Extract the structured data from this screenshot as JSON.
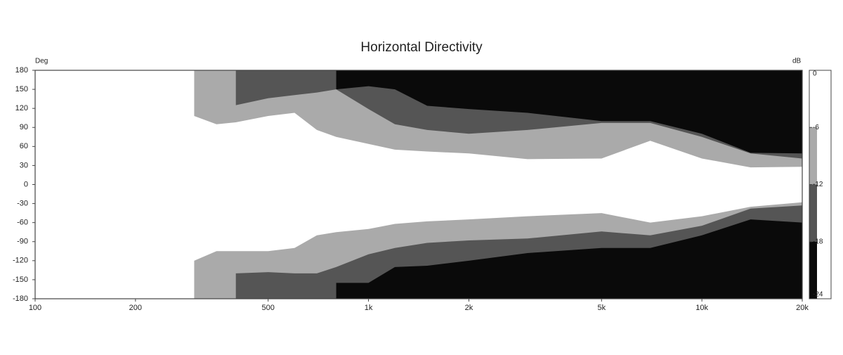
{
  "chart_data": {
    "type": "contour",
    "title": "Horizontal Directivity",
    "y_label": "Deg",
    "colorbar_label": "dB",
    "log_x": true,
    "xlim": [
      100,
      20000
    ],
    "xticks": [
      100,
      200,
      500,
      {
        "value": 1000,
        "label": "1k"
      },
      {
        "value": 2000,
        "label": "2k"
      },
      {
        "value": 5000,
        "label": "5k"
      },
      {
        "value": 10000,
        "label": "10k"
      },
      {
        "value": 20000,
        "label": "20k"
      }
    ],
    "ylim": [
      -180,
      180
    ],
    "yticks": [
      180,
      150,
      120,
      90,
      60,
      30,
      0,
      -30,
      -60,
      -90,
      -120,
      -150,
      -180
    ],
    "x": [
      300,
      350,
      400,
      500,
      600,
      700,
      800,
      1000,
      1200,
      1500,
      2000,
      3000,
      5000,
      7000,
      10000,
      14000,
      20000
    ],
    "series": [
      {
        "level": -6,
        "color": "#aaaaaa",
        "upper": [
          108,
          95,
          98,
          108,
          113,
          86,
          75,
          64,
          55,
          52,
          49,
          40,
          41,
          69,
          41,
          27,
          28
        ],
        "lower": [
          -120,
          -105,
          -105,
          -105,
          -100,
          -80,
          -75,
          -70,
          -62,
          -58,
          -55,
          -50,
          -45,
          -60,
          -50,
          -35,
          -28
        ]
      },
      {
        "level": -12,
        "color": "#555555",
        "upper": [
          null,
          null,
          125,
          136,
          141,
          145,
          150,
          119,
          95,
          86,
          80,
          86,
          97,
          97,
          75,
          49,
          41
        ],
        "lower": [
          null,
          null,
          -140,
          -138,
          -140,
          -140,
          -130,
          -110,
          -100,
          -92,
          -88,
          -85,
          -74,
          -80,
          -65,
          -38,
          -33
        ]
      },
      {
        "level": -18,
        "color": "#0a0a0a",
        "upper": [
          null,
          null,
          null,
          null,
          null,
          null,
          150,
          155,
          150,
          124,
          119,
          113,
          100,
          100,
          80,
          50,
          49
        ],
        "lower": [
          null,
          null,
          null,
          null,
          null,
          null,
          -155,
          -155,
          -130,
          -128,
          -120,
          -108,
          -100,
          -100,
          -80,
          -55,
          -60
        ]
      }
    ],
    "clim": [
      -24,
      0
    ],
    "colorbar_ticks": [
      0,
      -6,
      -12,
      -18,
      -24
    ],
    "colorbar_colors": [
      "#ffffff",
      "#aaaaaa",
      "#555555",
      "#0a0a0a"
    ]
  }
}
